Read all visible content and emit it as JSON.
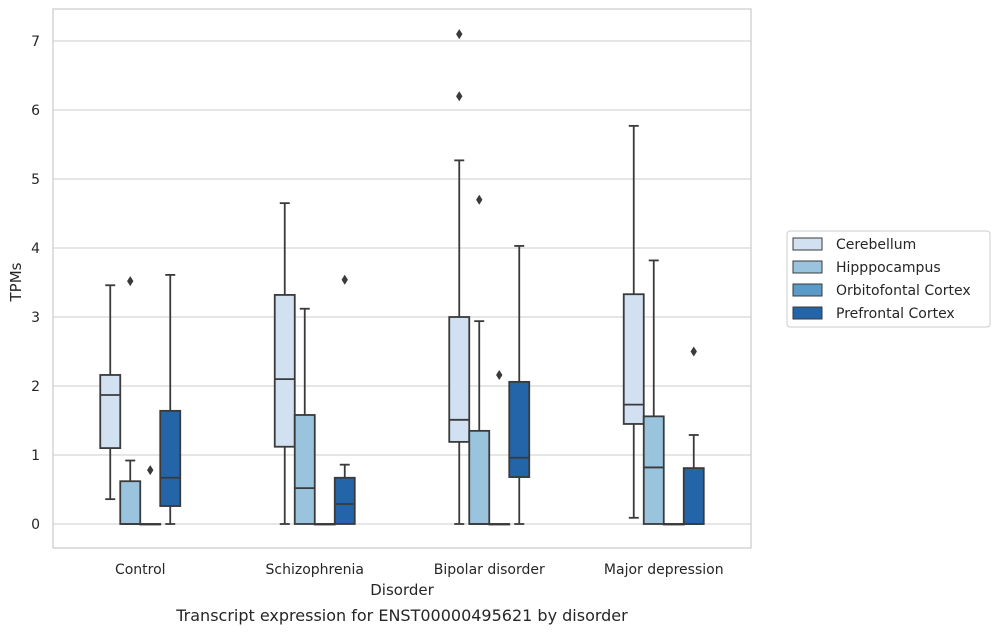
{
  "chart_data": {
    "type": "box",
    "caption": "Transcript expression for ENST00000495621 by disorder",
    "xlabel": "Disorder",
    "ylabel": "TPMs",
    "ylim": [
      -0.35,
      7.45
    ],
    "yticks": [
      0,
      1,
      2,
      3,
      4,
      5,
      6,
      7
    ],
    "grid": "horizontal",
    "legend_position": "right",
    "categories": [
      "Control",
      "Schizophrenia",
      "Bipolar disorder",
      "Major depression"
    ],
    "series": [
      {
        "name": "Cerebellum",
        "color": "#d1e1f1",
        "boxes": [
          {
            "whislo": 0.36,
            "q1": 1.1,
            "med": 1.87,
            "q3": 2.16,
            "whishi": 3.46,
            "fliers": []
          },
          {
            "whislo": 0.0,
            "q1": 1.12,
            "med": 2.1,
            "q3": 3.32,
            "whishi": 4.65,
            "fliers": []
          },
          {
            "whislo": 0.0,
            "q1": 1.19,
            "med": 1.51,
            "q3": 3.0,
            "whishi": 5.27,
            "fliers": [
              6.2,
              7.1
            ]
          },
          {
            "whislo": 0.09,
            "q1": 1.45,
            "med": 1.73,
            "q3": 3.33,
            "whishi": 5.77,
            "fliers": []
          }
        ]
      },
      {
        "name": "Hipppocampus",
        "color": "#9ac4de",
        "boxes": [
          {
            "whislo": 0.0,
            "q1": 0.0,
            "med": 0.0,
            "q3": 0.62,
            "whishi": 0.92,
            "fliers": [
              3.52
            ]
          },
          {
            "whislo": 0.0,
            "q1": 0.0,
            "med": 0.52,
            "q3": 1.58,
            "whishi": 3.12,
            "fliers": []
          },
          {
            "whislo": 0.0,
            "q1": 0.0,
            "med": 0.0,
            "q3": 1.35,
            "whishi": 2.94,
            "fliers": [
              4.7
            ]
          },
          {
            "whislo": 0.0,
            "q1": 0.0,
            "med": 0.82,
            "q3": 1.56,
            "whishi": 3.82,
            "fliers": []
          }
        ]
      },
      {
        "name": "Orbitofontal Cortex",
        "color": "#5a9bc9",
        "boxes": [
          {
            "whislo": 0.0,
            "q1": 0.0,
            "med": 0.0,
            "q3": 0.0,
            "whishi": 0.0,
            "fliers": [
              0.78
            ]
          },
          {
            "whislo": 0.0,
            "q1": 0.0,
            "med": 0.0,
            "q3": 0.0,
            "whishi": 0.0,
            "fliers": []
          },
          {
            "whislo": 0.0,
            "q1": 0.0,
            "med": 0.0,
            "q3": 0.0,
            "whishi": 0.0,
            "fliers": [
              2.16
            ]
          },
          {
            "whislo": 0.0,
            "q1": 0.0,
            "med": 0.0,
            "q3": 0.0,
            "whishi": 0.0,
            "fliers": []
          }
        ]
      },
      {
        "name": "Prefrontal Cortex",
        "color": "#2464a8",
        "boxes": [
          {
            "whislo": 0.0,
            "q1": 0.26,
            "med": 0.67,
            "q3": 1.64,
            "whishi": 3.61,
            "fliers": []
          },
          {
            "whislo": 0.0,
            "q1": 0.0,
            "med": 0.29,
            "q3": 0.67,
            "whishi": 0.86,
            "fliers": [
              3.54
            ]
          },
          {
            "whislo": 0.0,
            "q1": 0.68,
            "med": 0.96,
            "q3": 2.06,
            "whishi": 4.03,
            "fliers": []
          },
          {
            "whislo": 0.0,
            "q1": 0.0,
            "med": 0.0,
            "q3": 0.81,
            "whishi": 1.29,
            "fliers": [
              2.5
            ]
          }
        ]
      }
    ]
  }
}
